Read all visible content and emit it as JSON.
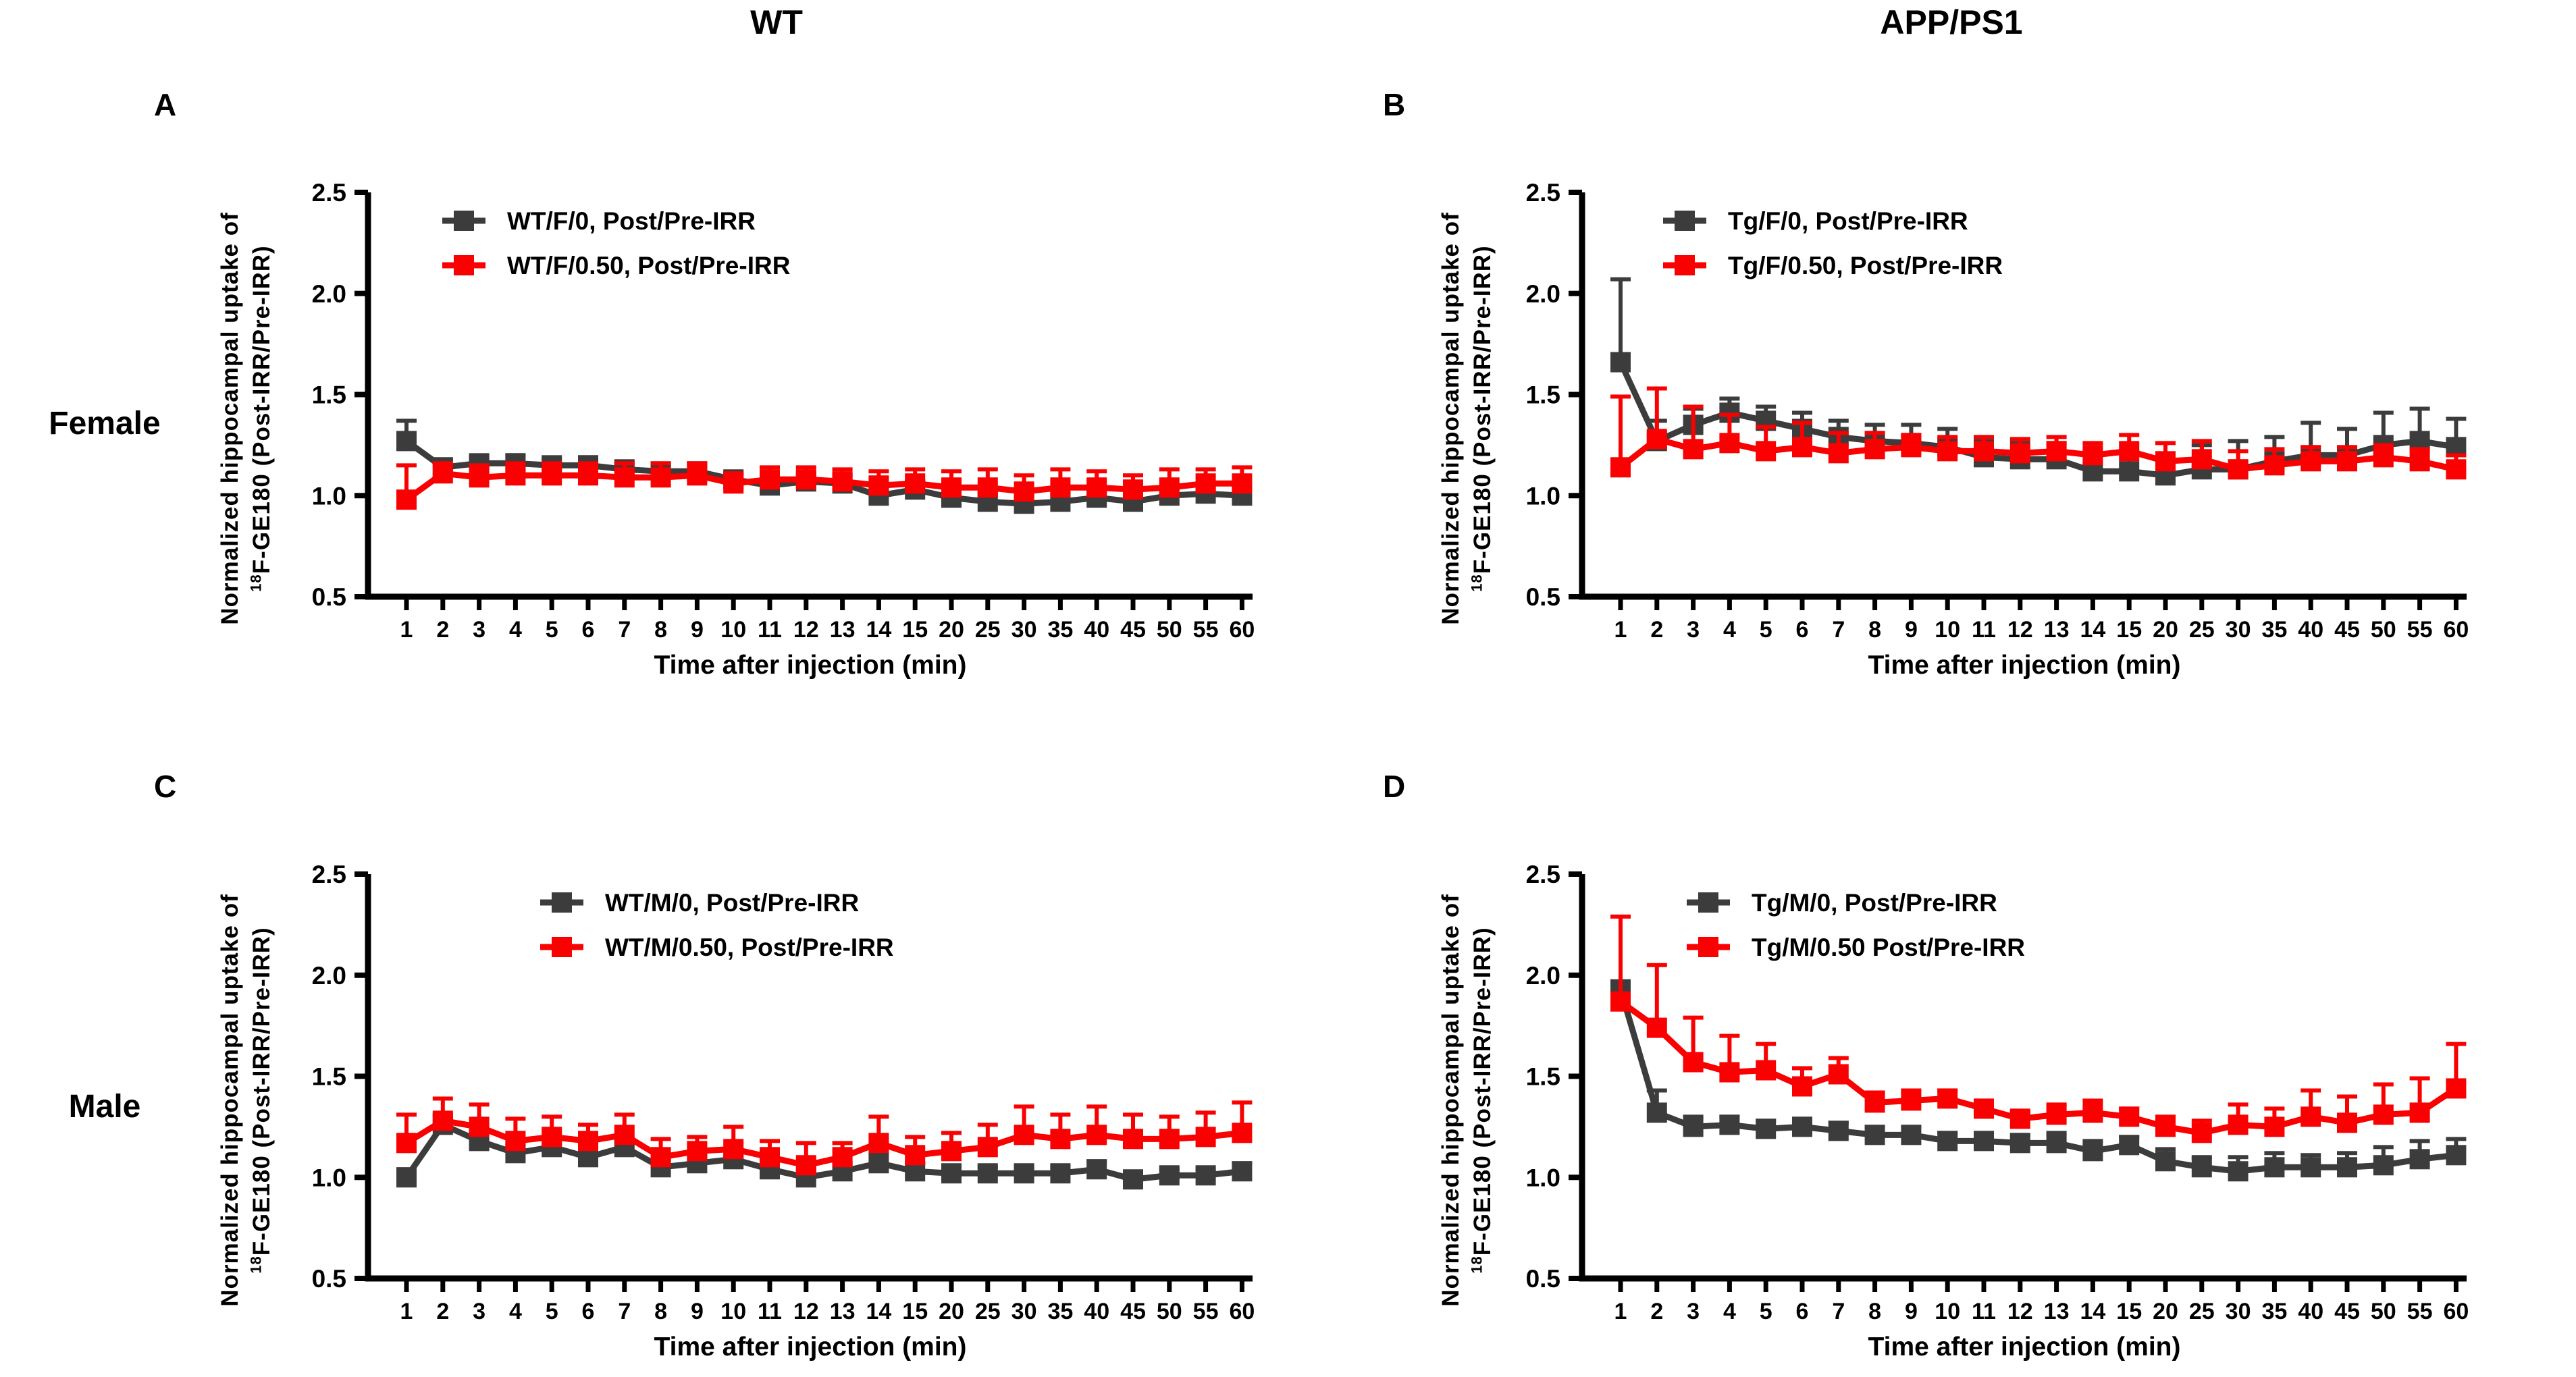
{
  "figure": {
    "column_headers": [
      "WT",
      "APP/PS1"
    ],
    "row_headers": [
      "Female",
      "Male"
    ],
    "colors": {
      "black_series": "#3c3c3c",
      "red_series": "#fa0000",
      "axis_and_text": "#000000",
      "background": "#ffffff"
    }
  },
  "axes": {
    "x_title": "Time after injection (min)",
    "y_title_line1": "Normalized hippocampal uptake of",
    "y_title_sup": "18",
    "y_title_line2": "F-GE180 (Post-IRR/Pre-IRR)",
    "y_ticks": [
      0.5,
      1.0,
      1.5,
      2.0,
      2.5
    ],
    "y_ticklabels": [
      "0.5",
      "1.0",
      "1.5",
      "2.0",
      "2.5"
    ],
    "ylim": [
      0.5,
      2.5
    ],
    "x_ticklabels": [
      "1",
      "2",
      "3",
      "4",
      "5",
      "6",
      "7",
      "8",
      "9",
      "10",
      "11",
      "12",
      "13",
      "14",
      "15",
      "20",
      "25",
      "30",
      "35",
      "40",
      "45",
      "50",
      "55",
      "60"
    ],
    "grid": "off",
    "error_bars": "upper-only"
  },
  "chart_data": [
    {
      "id": "A",
      "panel_letter": "A",
      "type": "line",
      "column": "WT",
      "row": "Female",
      "legend_position": "top-left-inside",
      "legend_x": 205,
      "categories": [
        1,
        2,
        3,
        4,
        5,
        6,
        7,
        8,
        9,
        10,
        11,
        12,
        13,
        14,
        15,
        20,
        25,
        30,
        35,
        40,
        45,
        50,
        55,
        60
      ],
      "series": [
        {
          "name": "WT/F/0, Post/Pre-IRR",
          "color": "#3c3c3c",
          "means": [
            1.27,
            1.14,
            1.16,
            1.16,
            1.15,
            1.15,
            1.13,
            1.12,
            1.12,
            1.08,
            1.05,
            1.07,
            1.06,
            1.0,
            1.03,
            0.99,
            0.97,
            0.96,
            0.97,
            0.99,
            0.97,
            1.0,
            1.01,
            1.0
          ],
          "sd_up": [
            0.1,
            0.04,
            0.03,
            0.04,
            0.03,
            0.04,
            0.03,
            0.03,
            0.04,
            0.03,
            0.04,
            0.03,
            0.04,
            0.04,
            0.04,
            0.04,
            0.04,
            0.04,
            0.04,
            0.04,
            0.04,
            0.04,
            0.04,
            0.05
          ]
        },
        {
          "name": "WT/F/0.50, Post/Pre-IRR",
          "color": "#fa0000",
          "means": [
            0.98,
            1.11,
            1.09,
            1.1,
            1.1,
            1.1,
            1.09,
            1.09,
            1.1,
            1.06,
            1.08,
            1.08,
            1.07,
            1.05,
            1.06,
            1.04,
            1.04,
            1.02,
            1.04,
            1.04,
            1.03,
            1.04,
            1.06,
            1.06
          ],
          "sd_up": [
            0.17,
            0.05,
            0.06,
            0.06,
            0.06,
            0.06,
            0.07,
            0.07,
            0.06,
            0.05,
            0.06,
            0.06,
            0.06,
            0.07,
            0.07,
            0.08,
            0.09,
            0.08,
            0.09,
            0.08,
            0.07,
            0.09,
            0.07,
            0.08
          ]
        }
      ]
    },
    {
      "id": "B",
      "panel_letter": "B",
      "type": "line",
      "column": "APP/PS1",
      "row": "Female",
      "legend_position": "top-left-inside",
      "legend_x": 215,
      "categories": [
        1,
        2,
        3,
        4,
        5,
        6,
        7,
        8,
        9,
        10,
        11,
        12,
        13,
        14,
        15,
        20,
        25,
        30,
        35,
        40,
        45,
        50,
        55,
        60
      ],
      "series": [
        {
          "name": "Tg/F/0, Post/Pre-IRR",
          "color": "#3c3c3c",
          "means": [
            1.66,
            1.27,
            1.35,
            1.41,
            1.37,
            1.33,
            1.29,
            1.27,
            1.26,
            1.24,
            1.19,
            1.18,
            1.18,
            1.12,
            1.12,
            1.1,
            1.13,
            1.13,
            1.17,
            1.2,
            1.2,
            1.25,
            1.27,
            1.24
          ],
          "sd_up": [
            0.41,
            0.1,
            0.08,
            0.07,
            0.07,
            0.08,
            0.08,
            0.08,
            0.09,
            0.09,
            0.08,
            0.08,
            0.08,
            0.1,
            0.1,
            0.1,
            0.12,
            0.14,
            0.12,
            0.16,
            0.13,
            0.16,
            0.16,
            0.14
          ]
        },
        {
          "name": "Tg/F/0.50, Post/Pre-IRR",
          "color": "#fa0000",
          "means": [
            1.14,
            1.28,
            1.23,
            1.26,
            1.22,
            1.24,
            1.21,
            1.23,
            1.24,
            1.22,
            1.22,
            1.21,
            1.22,
            1.2,
            1.22,
            1.17,
            1.18,
            1.13,
            1.15,
            1.17,
            1.17,
            1.19,
            1.17,
            1.13
          ],
          "sd_up": [
            0.35,
            0.25,
            0.21,
            0.14,
            0.12,
            0.12,
            0.1,
            0.08,
            0.06,
            0.07,
            0.07,
            0.07,
            0.07,
            0.06,
            0.08,
            0.09,
            0.09,
            0.09,
            0.08,
            0.07,
            0.07,
            0.06,
            0.06,
            0.07
          ]
        }
      ]
    },
    {
      "id": "C",
      "panel_letter": "C",
      "type": "line",
      "column": "WT",
      "row": "Male",
      "legend_position": "top-left-inside",
      "legend_x": 350,
      "categories": [
        1,
        2,
        3,
        4,
        5,
        6,
        7,
        8,
        9,
        10,
        11,
        12,
        13,
        14,
        15,
        20,
        25,
        30,
        35,
        40,
        45,
        50,
        55,
        60
      ],
      "series": [
        {
          "name": "WT/M/0, Post/Pre-IRR",
          "color": "#3c3c3c",
          "means": [
            1.0,
            1.26,
            1.18,
            1.12,
            1.15,
            1.1,
            1.15,
            1.05,
            1.07,
            1.09,
            1.04,
            1.0,
            1.03,
            1.07,
            1.03,
            1.02,
            1.02,
            1.02,
            1.02,
            1.04,
            0.99,
            1.01,
            1.01,
            1.03
          ],
          "sd_up": [
            0.04,
            0.05,
            0.04,
            0.04,
            0.04,
            0.04,
            0.04,
            0.04,
            0.04,
            0.04,
            0.04,
            0.04,
            0.04,
            0.05,
            0.04,
            0.03,
            0.03,
            0.03,
            0.03,
            0.04,
            0.03,
            0.03,
            0.03,
            0.04
          ]
        },
        {
          "name": "WT/M/0.50, Post/Pre-IRR",
          "color": "#fa0000",
          "means": [
            1.17,
            1.28,
            1.25,
            1.18,
            1.2,
            1.18,
            1.21,
            1.1,
            1.13,
            1.14,
            1.1,
            1.06,
            1.1,
            1.17,
            1.11,
            1.13,
            1.15,
            1.21,
            1.19,
            1.21,
            1.19,
            1.19,
            1.2,
            1.22
          ],
          "sd_up": [
            0.14,
            0.11,
            0.11,
            0.11,
            0.1,
            0.08,
            0.1,
            0.09,
            0.07,
            0.11,
            0.08,
            0.11,
            0.07,
            0.13,
            0.09,
            0.09,
            0.11,
            0.14,
            0.12,
            0.14,
            0.12,
            0.11,
            0.12,
            0.15
          ]
        }
      ]
    },
    {
      "id": "D",
      "panel_letter": "D",
      "type": "line",
      "column": "APP/PS1",
      "row": "Male",
      "legend_position": "top-left-inside",
      "legend_x": 250,
      "categories": [
        1,
        2,
        3,
        4,
        5,
        6,
        7,
        8,
        9,
        10,
        11,
        12,
        13,
        14,
        15,
        20,
        25,
        30,
        35,
        40,
        45,
        50,
        55,
        60
      ],
      "series": [
        {
          "name": "Tg/M/0, Post/Pre-IRR",
          "color": "#3c3c3c",
          "means": [
            1.93,
            1.32,
            1.25,
            1.26,
            1.24,
            1.25,
            1.23,
            1.21,
            1.21,
            1.18,
            1.18,
            1.17,
            1.17,
            1.13,
            1.16,
            1.08,
            1.05,
            1.03,
            1.05,
            1.05,
            1.05,
            1.06,
            1.09,
            1.11
          ],
          "sd_up": [
            0.02,
            0.11,
            0.05,
            0.04,
            0.04,
            0.04,
            0.04,
            0.04,
            0.04,
            0.04,
            0.04,
            0.04,
            0.05,
            0.05,
            0.04,
            0.06,
            0.05,
            0.07,
            0.07,
            0.06,
            0.07,
            0.09,
            0.09,
            0.08
          ]
        },
        {
          "name": "Tg/M/0.50 Post/Pre-IRR",
          "color": "#fa0000",
          "means": [
            1.87,
            1.74,
            1.57,
            1.52,
            1.53,
            1.45,
            1.51,
            1.37,
            1.38,
            1.39,
            1.34,
            1.29,
            1.31,
            1.32,
            1.3,
            1.25,
            1.22,
            1.26,
            1.25,
            1.3,
            1.27,
            1.31,
            1.32,
            1.44
          ],
          "sd_up": [
            0.42,
            0.31,
            0.22,
            0.18,
            0.13,
            0.09,
            0.08,
            0.05,
            0.05,
            0.04,
            0.04,
            0.03,
            0.05,
            0.06,
            0.04,
            0.05,
            0.06,
            0.1,
            0.09,
            0.13,
            0.13,
            0.15,
            0.17,
            0.22
          ]
        }
      ]
    }
  ]
}
